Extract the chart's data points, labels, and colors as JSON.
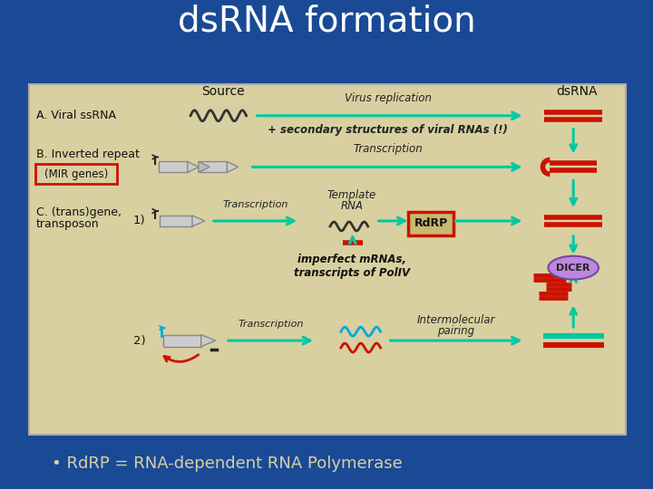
{
  "title": "dsRNA formation",
  "title_color": "#FFFFFF",
  "title_fontsize": 28,
  "bg_color": "#1a4a96",
  "panel_color": "#d8d0a0",
  "bullet_text": "• RdRP = RNA-dependent RNA Polymerase",
  "bullet_color": "#d8d0a0",
  "bullet_fontsize": 13,
  "source_label": "Source",
  "dsrna_label": "dsRNA",
  "arrow_color": "#00c8a0",
  "red_color": "#cc1100",
  "blue_color": "#00aadd",
  "teal_color": "#00c8a0",
  "purple_color": "#9966bb",
  "dark_color": "#222222",
  "secondary_text": "+ secondary structures of viral RNAs (!)",
  "imperfect_text": "imperfect mRNAs,\ntranscripts of PolIV",
  "rdrp_text": "RdRP",
  "dicer_text": "DICER",
  "template_text": "Template\nRNA",
  "virus_rep_text": "Virus replication",
  "transcription_text": "Transcription",
  "intermolecular_text": "Intermolecular\npairing",
  "label_1": "1)",
  "label_2": "2)"
}
